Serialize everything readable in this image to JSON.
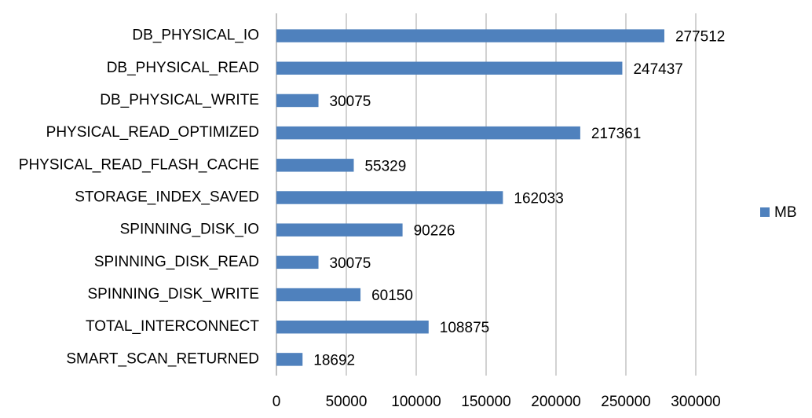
{
  "chart_data": {
    "type": "bar",
    "orientation": "horizontal",
    "categories": [
      "DB_PHYSICAL_IO",
      "DB_PHYSICAL_READ",
      "DB_PHYSICAL_WRITE",
      "PHYSICAL_READ_OPTIMIZED",
      "PHYSICAL_READ_FLASH_CACHE",
      "STORAGE_INDEX_SAVED",
      "SPINNING_DISK_IO",
      "SPINNING_DISK_READ",
      "SPINNING_DISK_WRITE",
      "TOTAL_INTERCONNECT",
      "SMART_SCAN_RETURNED"
    ],
    "series": [
      {
        "name": "MB",
        "color": "#4f81bd",
        "values": [
          277512,
          247437,
          30075,
          217361,
          55329,
          162033,
          90226,
          30075,
          60150,
          108875,
          18692
        ]
      }
    ],
    "xlim": [
      0,
      300000
    ],
    "xticks": [
      0,
      50000,
      100000,
      150000,
      200000,
      250000,
      300000
    ],
    "grid": true,
    "legend": "right",
    "data_labels": true
  }
}
